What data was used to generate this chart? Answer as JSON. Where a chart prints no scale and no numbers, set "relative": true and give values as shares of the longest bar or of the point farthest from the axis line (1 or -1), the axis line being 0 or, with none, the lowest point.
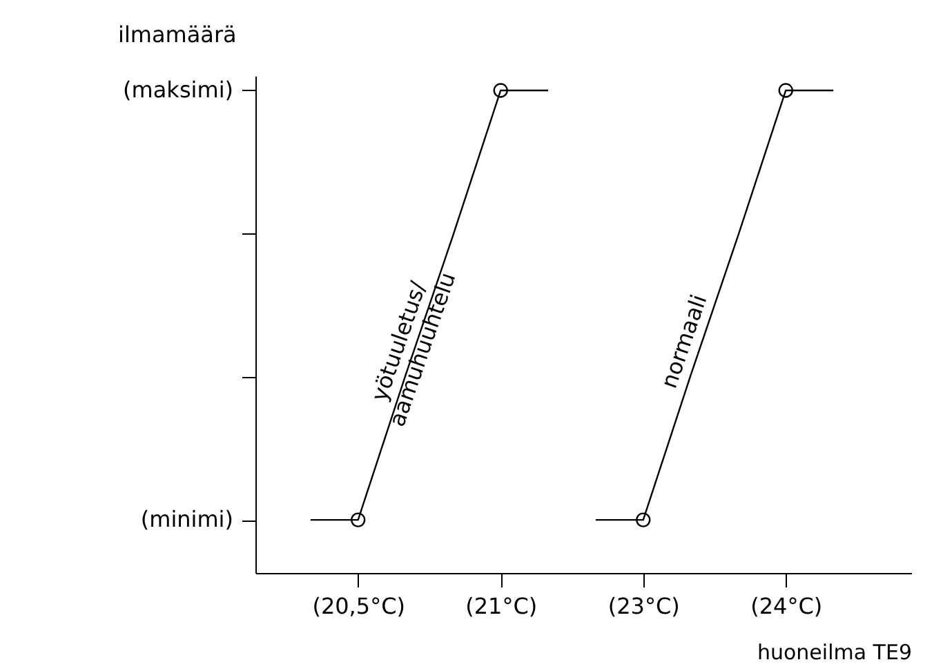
{
  "chart_data": {
    "type": "line",
    "relative": true,
    "xlabel": "huoneilma TE9",
    "ylabel": "ilmamäärä",
    "categories": [
      null,
      "(20,5°C)",
      null,
      null,
      "(21°C)",
      null,
      null,
      "(23°C)",
      null,
      null,
      "(24°C)",
      null
    ],
    "annotations": [
      "(minimi)",
      "(maksimi)"
    ],
    "grid": false,
    "line_style": "solid",
    "series": [
      {
        "name": "yötuuletus/\naamuhuuhtelu",
        "color": "#000000",
        "values": [
          0.11,
          0.11,
          0.41,
          0.7,
          1,
          1,
          null,
          null,
          null,
          null,
          null,
          null
        ]
      },
      {
        "name": "normaali",
        "color": "#000000",
        "values": [
          null,
          null,
          null,
          null,
          null,
          null,
          0.11,
          0.11,
          0.41,
          0.7,
          1,
          1
        ]
      },
      {
        "type": "scatter",
        "marker": "circle",
        "color": "#000000",
        "values": [
          null,
          0.11,
          null,
          null,
          1,
          null,
          null,
          null,
          null,
          null,
          null,
          null
        ]
      },
      {
        "type": "scatter",
        "marker": "circle",
        "color": "#000000",
        "values": [
          null,
          null,
          null,
          null,
          null,
          null,
          null,
          0.11,
          null,
          null,
          1,
          null
        ]
      }
    ]
  }
}
